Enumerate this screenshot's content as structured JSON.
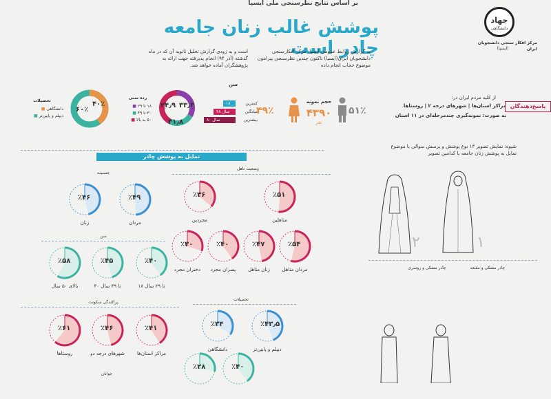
{
  "header": {
    "topline": "بر اساس نتایج نظرسنجی ملی ایسپا",
    "title": "پوشش غالب زنان جامعه چادر است",
    "logo_text": "جهاد",
    "logo_sub": "دانشگاهی",
    "org_name": "مرکز افکار سنجی دانشجویان ایران",
    "org_abbr": "(ایسپا)"
  },
  "intro": {
    "col1": "به گزارش روابط عمومی ایسپا، مرکز افکارسنجی دانشجویان ایران(ایسپا) تاکنون چندین نظرسنجی پیرامون موضوع حجاب انجام داده",
    "col2": "است و به زودی گزارش تحلیل ثانویه آن که در ماه گذشته (آذر ۹۴) انجام پذیرفته جهت ارائه به پژوهشگران آماده خواهد شد."
  },
  "respondents": {
    "tag": "پاسخ‌دهندگان",
    "line1": "از کلیه مردم ایران در:",
    "place1": "مراکز استان‌ها",
    "place2": "شهرهای درجه ۲",
    "place3": "روستاها",
    "line2": "به صورت: نمونه‌گیری چندمرحله‌ای در ۱۱ استان"
  },
  "sample": {
    "female_pct": "۴۹٪",
    "male_pct": "۵۱٪",
    "label": "حجم نمونه",
    "size": "۴۳۹۰",
    "unit": "نفر"
  },
  "age": {
    "title": "سن",
    "rows": [
      {
        "label": "کمترین",
        "value": "۱۸"
      },
      {
        "label": "میانگین",
        "value": "۳۸ سال"
      },
      {
        "label": "بیشترین",
        "value": "۸۰ سال"
      }
    ]
  },
  "age_groups": {
    "title": "رده سنی",
    "pcts": [
      "۳۳٫۳",
      "۲۴٫۹",
      "۴۱٫۸"
    ],
    "legend": [
      "۱۸ تا ۲۹",
      "۳۰ تا ۴۹",
      "۵۰ به بالا"
    ]
  },
  "education": {
    "title": "تحصیلات",
    "pcts": [
      "۴۰٪",
      "۶۰٪"
    ],
    "legend": [
      "دانشگاهی",
      "دیپلم و پایین‌تر"
    ]
  },
  "banner": "تمایل به پوشش چادر",
  "figure_note": "شیوه: نمایش تصویر ۱۳ نوع پوشش و پرسش سوالی با موضوع تمایل به پوشش زنان جامعه با کدامین تصویر",
  "figure_labels": {
    "f1": "چادر مشکی و مقنعه",
    "f2": "چادر مشکی و روسری",
    "n1": "۱",
    "n2": "۲"
  },
  "groups": {
    "gender": {
      "title": "جنسیت",
      "items": [
        {
          "label": "مردان",
          "pct": "۴۹",
          "value": 49
        },
        {
          "label": "زنان",
          "pct": "۴۶",
          "value": 46
        }
      ]
    },
    "marital": {
      "title": "وضعیت تاهل",
      "items": [
        {
          "label": "متاهلین",
          "pct": "۵۱",
          "value": 51
        },
        {
          "label": "مجردین",
          "pct": "۳۶",
          "value": 36
        }
      ]
    },
    "age": {
      "title": "سن",
      "items": [
        {
          "label": "۱۸ تا ۲۹ سال",
          "pct": "۴۰",
          "value": 40
        },
        {
          "label": "۳۰ تا ۴۹ سال",
          "pct": "۴۵",
          "value": 45
        },
        {
          "label": "بالای ۵۰ سال",
          "pct": "۵۸",
          "value": 58
        }
      ]
    },
    "marital_gender": {
      "items": [
        {
          "label": "مردان متاهل",
          "pct": "۵۴",
          "value": 54
        },
        {
          "label": "زنان متاهل",
          "pct": "۴۷",
          "value": 47
        },
        {
          "label": "پسران مجرد",
          "pct": "۴۰",
          "value": 40
        },
        {
          "label": "دختران مجرد",
          "pct": "۳۰",
          "value": 30
        }
      ]
    },
    "residence": {
      "title": "پراکندگی سکونت",
      "items": [
        {
          "label": "مراکز استان‌ها",
          "pct": "۴۱",
          "value": 41
        },
        {
          "label": "شهرهای درجه دو",
          "pct": "۴۶",
          "value": 46
        },
        {
          "label": "روستاها",
          "pct": "۶۱",
          "value": 61
        }
      ]
    },
    "education": {
      "title": "تحصیلات",
      "items": [
        {
          "label": "دیپلم و پایین‌تر",
          "pct": "۴۳٫۵",
          "value": 43.5
        },
        {
          "label": "دانشگاهی",
          "pct": "۳۴",
          "value": 34
        }
      ]
    },
    "youth": {
      "title": "جوانان",
      "items": [
        {
          "label": "",
          "pct": "۴۰",
          "value": 40
        },
        {
          "label": "",
          "pct": "۲۸",
          "value": 28
        }
      ]
    }
  },
  "colors": {
    "accent": "#2aa8c9",
    "blue": "#3b8fd1",
    "pink": "#c8235a",
    "purple": "#8b3fa8",
    "teal": "#3bb3a0",
    "orange": "#e8934a",
    "rose_fill": "#f6c9c9"
  }
}
